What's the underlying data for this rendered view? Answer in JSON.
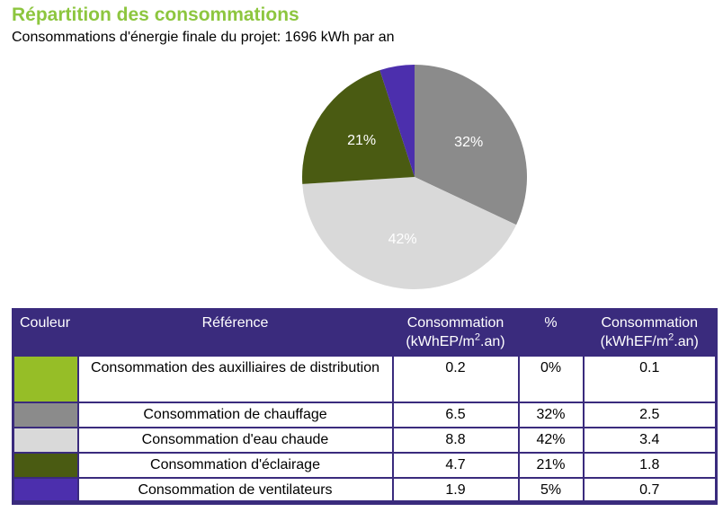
{
  "page": {
    "title": "Répartition des consommations",
    "subtitle": "Consommations d'énergie finale du projet: 1696 kWh par an",
    "title_color": "#8DC63F"
  },
  "chart_data": {
    "type": "pie",
    "title": "Répartition des consommations",
    "subtitle": "Consommations d'énergie finale du projet: 1696 kWh par an",
    "total_label": "1696 kWh par an",
    "start_angle_deg": 0,
    "direction": "clockwise",
    "label_color": "#FFFFFF",
    "label_min_percent": 10,
    "slices": [
      {
        "label": "Consommation des auxilliaires de distribution",
        "percent": 0,
        "color": "#96BE27"
      },
      {
        "label": "Consommation de chauffage",
        "percent": 32,
        "color": "#8B8B8B"
      },
      {
        "label": "Consommation d'eau chaude",
        "percent": 42,
        "color": "#D9D9D9"
      },
      {
        "label": "Consommation d'éclairage",
        "percent": 21,
        "color": "#4A5B12"
      },
      {
        "label": "Consommation de ventilateurs",
        "percent": 5,
        "color": "#4C2FAD"
      }
    ]
  },
  "table": {
    "header_bg": "#3A2B7D",
    "border_color": "#3A2B7D",
    "columns": [
      {
        "label": "Couleur"
      },
      {
        "label": "Référence"
      },
      {
        "label": "Consommation",
        "unit_pre": "(kWhEP/m",
        "unit_sup": "2",
        "unit_post": ".an)"
      },
      {
        "label": "%"
      },
      {
        "label": "Consommation",
        "unit_pre": "(kWhEF/m",
        "unit_sup": "2",
        "unit_post": ".an)"
      }
    ],
    "rows": [
      {
        "color": "#96BE27",
        "reference": "Consommation des auxilliaires de distribution",
        "consumption_ep": "0.2",
        "percent": "0%",
        "consumption_ef": "0.1"
      },
      {
        "color": "#8B8B8B",
        "reference": "Consommation de chauffage",
        "consumption_ep": "6.5",
        "percent": "32%",
        "consumption_ef": "2.5"
      },
      {
        "color": "#D9D9D9",
        "reference": "Consommation d'eau chaude",
        "consumption_ep": "8.8",
        "percent": "42%",
        "consumption_ef": "3.4"
      },
      {
        "color": "#4A5B12",
        "reference": "Consommation d'éclairage",
        "consumption_ep": "4.7",
        "percent": "21%",
        "consumption_ef": "1.8"
      },
      {
        "color": "#4C2FAD",
        "reference": "Consommation de ventilateurs",
        "consumption_ep": "1.9",
        "percent": "5%",
        "consumption_ef": "0.7"
      }
    ]
  }
}
